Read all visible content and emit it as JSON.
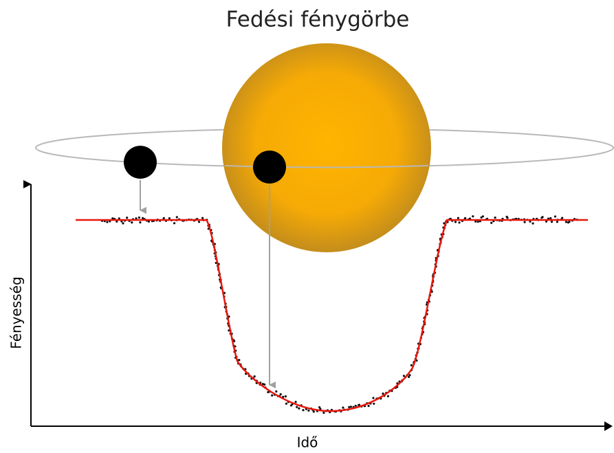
{
  "title": "Fedési fénygörbe",
  "axes": {
    "y_label": "Fényesség",
    "x_label": "Idő"
  }
}
